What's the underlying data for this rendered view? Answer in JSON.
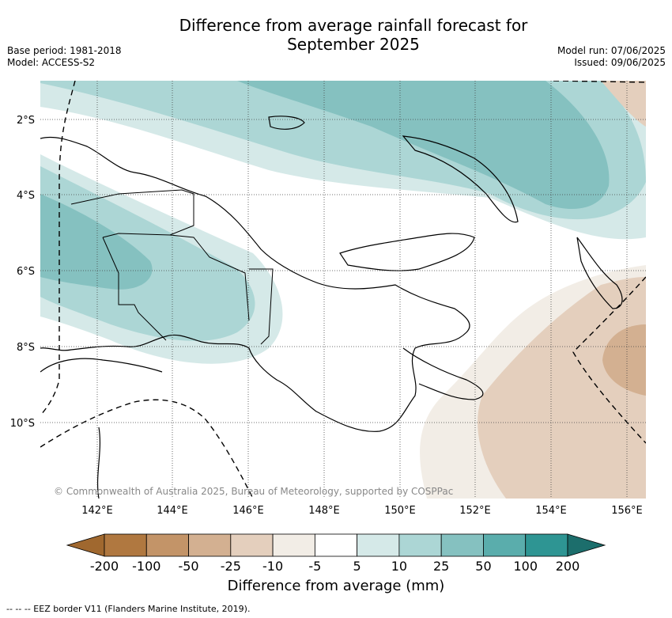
{
  "title_line1": "Difference from average rainfall forecast for",
  "title_line2": "September 2025",
  "meta_left": {
    "base_period": "Base period: 1981-2018",
    "model": "Model: ACCESS-S2"
  },
  "meta_right": {
    "model_run": "Model run: 07/06/2025",
    "issued": "Issued: 09/06/2025"
  },
  "map": {
    "lat_labels": [
      "2°S",
      "4°S",
      "6°S",
      "8°S",
      "10°S"
    ],
    "lon_labels": [
      "142°E",
      "144°E",
      "146°E",
      "148°E",
      "150°E",
      "152°E",
      "154°E",
      "156°E"
    ],
    "copyright": "© Commonwealth of Australia 2025, Bureau of Meteorology, supported by COSPPac",
    "gridlines": "dotted",
    "region": "Papua New Guinea"
  },
  "colorbar": {
    "label": "Difference from average (mm)",
    "tick_labels": [
      "-200",
      "-100",
      "-50",
      "-25",
      "-10",
      "-5",
      "5",
      "10",
      "25",
      "50",
      "100",
      "200"
    ],
    "colors": [
      "#a0682f",
      "#b07840",
      "#c39468",
      "#d3b091",
      "#e4cfbd",
      "#f2ede6",
      "#ffffff",
      "#d5e9e8",
      "#acd6d5",
      "#85c1c0",
      "#5aadac",
      "#2e9593",
      "#1c6e6c"
    ]
  },
  "footnote": "--  --  -- EEZ border V11 (Flanders Marine Institute, 2019)."
}
